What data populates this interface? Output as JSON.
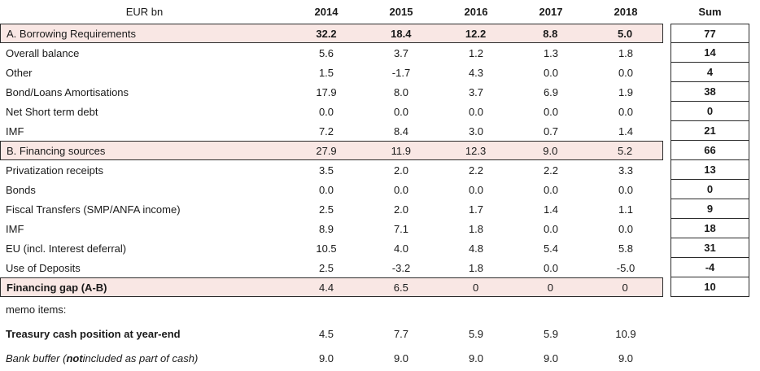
{
  "header": {
    "unit_label": "EUR bn",
    "columns": [
      "2014",
      "2015",
      "2016",
      "2017",
      "2018"
    ],
    "sum_label": "Sum"
  },
  "colors": {
    "highlight_row_bg": "#f9e7e4",
    "border": "#2b2b2b"
  },
  "table": {
    "rows": [
      {
        "label": "A. Borrowing Requirements",
        "values": [
          "32.2",
          "18.4",
          "12.2",
          "8.8",
          "5.0"
        ],
        "sum": "77",
        "highlight": true,
        "values_bold": true
      },
      {
        "label": "Overall balance",
        "values": [
          "5.6",
          "3.7",
          "1.2",
          "1.3",
          "1.8"
        ],
        "sum": "14"
      },
      {
        "label": "Other",
        "values": [
          "1.5",
          "-1.7",
          "4.3",
          "0.0",
          "0.0"
        ],
        "sum": "4"
      },
      {
        "label": "Bond/Loans Amortisations",
        "values": [
          "17.9",
          "8.0",
          "3.7",
          "6.9",
          "1.9"
        ],
        "sum": "38"
      },
      {
        "label": "Net Short term debt",
        "values": [
          "0.0",
          "0.0",
          "0.0",
          "0.0",
          "0.0"
        ],
        "sum": "0"
      },
      {
        "label": "IMF",
        "values": [
          "7.2",
          "8.4",
          "3.0",
          "0.7",
          "1.4"
        ],
        "sum": "21"
      },
      {
        "label": "B. Financing sources",
        "values": [
          "27.9",
          "11.9",
          "12.3",
          "9.0",
          "5.2"
        ],
        "sum": "66",
        "highlight": true
      },
      {
        "label": "Privatization receipts",
        "values": [
          "3.5",
          "2.0",
          "2.2",
          "2.2",
          "3.3"
        ],
        "sum": "13"
      },
      {
        "label": "Bonds",
        "values": [
          "0.0",
          "0.0",
          "0.0",
          "0.0",
          "0.0"
        ],
        "sum": "0"
      },
      {
        "label": "Fiscal Transfers (SMP/ANFA income)",
        "values": [
          "2.5",
          "2.0",
          "1.7",
          "1.4",
          "1.1"
        ],
        "sum": "9"
      },
      {
        "label": "IMF",
        "values": [
          "8.9",
          "7.1",
          "1.8",
          "0.0",
          "0.0"
        ],
        "sum": "18"
      },
      {
        "label": "EU (incl. Interest deferral)",
        "values": [
          "10.5",
          "4.0",
          "4.8",
          "5.4",
          "5.8"
        ],
        "sum": "31"
      },
      {
        "label": "Use of Deposits",
        "values": [
          "2.5",
          "-3.2",
          "1.8",
          "0.0",
          "-5.0"
        ],
        "sum": "-4"
      },
      {
        "label": "Financing gap (A-B)",
        "values": [
          "4.4",
          "6.5",
          "0",
          "0",
          "0"
        ],
        "sum": "10",
        "highlight": true,
        "label_bold": true
      },
      {
        "label": "memo items:",
        "values": [],
        "sum": null,
        "tall": true
      },
      {
        "label": "Treasury cash position at year-end",
        "values": [
          "4.5",
          "7.7",
          "5.9",
          "5.9",
          "10.9"
        ],
        "sum": null,
        "label_bold": true,
        "tall": true
      },
      {
        "label": "Bank buffer (not included as part of cash)",
        "values": [
          "9.0",
          "9.0",
          "9.0",
          "9.0",
          "9.0"
        ],
        "sum": null,
        "label_italic": true,
        "label_bold_segment": "not",
        "tall": true
      }
    ]
  }
}
